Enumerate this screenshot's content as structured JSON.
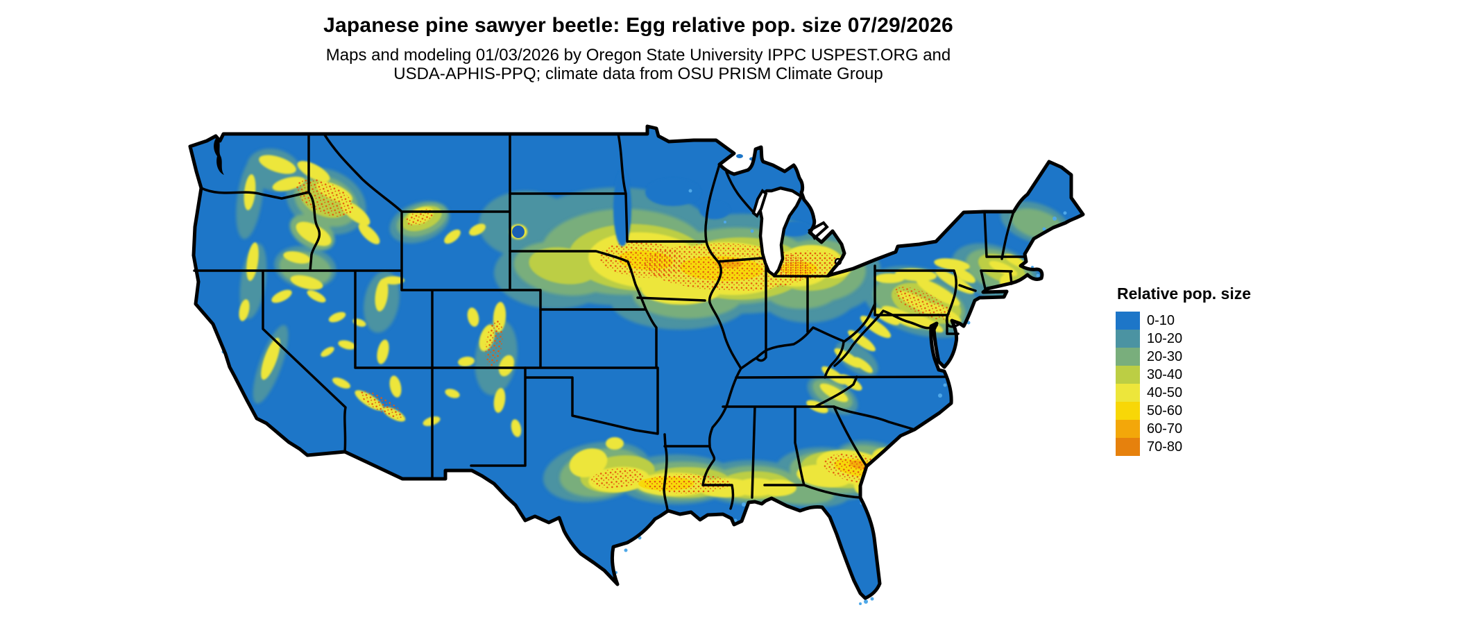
{
  "title": "Japanese pine sawyer beetle: Egg relative pop. size 07/29/2026",
  "subtitle_line1": "Maps and modeling 01/03/2026 by Oregon State University IPPC USPEST.ORG and",
  "subtitle_line2": "USDA-APHIS-PPQ; climate data from OSU PRISM Climate Group",
  "legend": {
    "title": "Relative pop. size",
    "items": [
      {
        "label": "0-10",
        "color": "#1D76C8"
      },
      {
        "label": "10-20",
        "color": "#4B93A2"
      },
      {
        "label": "20-30",
        "color": "#79AE7C"
      },
      {
        "label": "30-40",
        "color": "#BCCE44"
      },
      {
        "label": "40-50",
        "color": "#EDE63B"
      },
      {
        "label": "50-60",
        "color": "#F8D707"
      },
      {
        "label": "60-70",
        "color": "#F3A70A"
      },
      {
        "label": "70-80",
        "color": "#E6810D"
      }
    ]
  },
  "map": {
    "region": "Contiguous United States",
    "palette": {
      "blue": "#1D76C8",
      "teal": "#4B93A2",
      "green": "#79AE7C",
      "ygreen": "#BCCE44",
      "yellow": "#EDE63B",
      "gold": "#F8D707",
      "amber": "#F3A70A",
      "orange": "#E6810D",
      "speck": "#E2590E",
      "dark": "#1A5FB4",
      "water": "#4FA8E8",
      "border": "#000000",
      "background": "#FFFFFF"
    }
  }
}
